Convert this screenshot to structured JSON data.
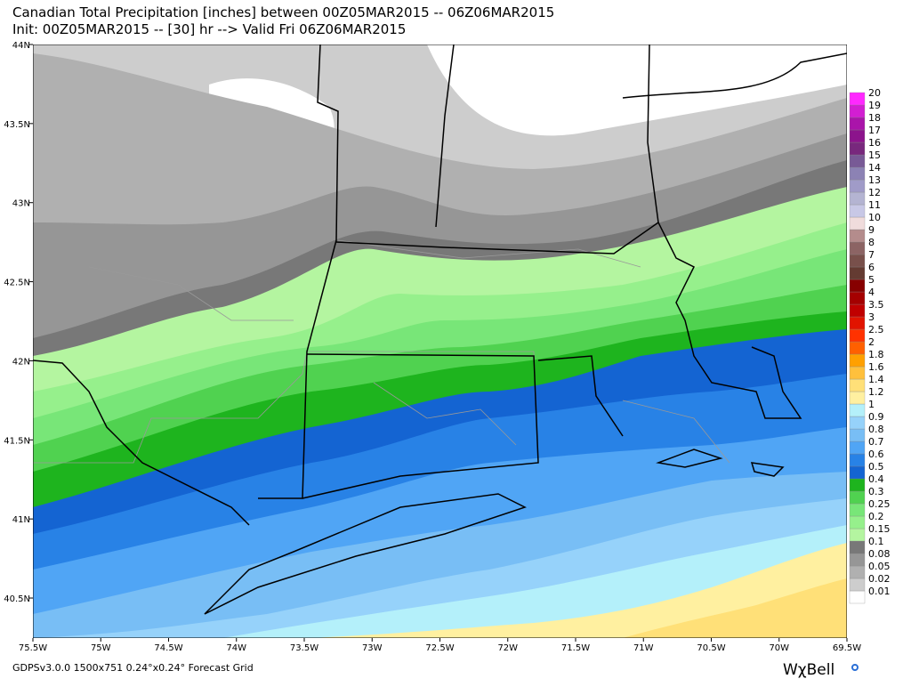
{
  "header": {
    "line1": "Canadian Total Precipitation [inches] between 00Z05MAR2015 -- 06Z06MAR2015",
    "line2": "Init: 00Z05MAR2015 -- [30] hr --> Valid Fri 06Z06MAR2015"
  },
  "lon_labels": [
    "75.5W",
    "75W",
    "74.5W",
    "74W",
    "73.5W",
    "73W",
    "72.5W",
    "72W",
    "71.5W",
    "71W",
    "70.5W",
    "70W",
    "69.5W"
  ],
  "lat_labels": [
    "44N",
    "43.5N",
    "43N",
    "42.5N",
    "42N",
    "41.5N",
    "41N",
    "40.5N"
  ],
  "colorbar": [
    {
      "label": "0.01",
      "color": "#ffffff"
    },
    {
      "label": "0.02",
      "color": "#cdcdcd"
    },
    {
      "label": "0.05",
      "color": "#b0b0b0"
    },
    {
      "label": "0.08",
      "color": "#969696"
    },
    {
      "label": "0.1",
      "color": "#787878"
    },
    {
      "label": "0.15",
      "color": "#b4f5a0"
    },
    {
      "label": "0.2",
      "color": "#96f08c"
    },
    {
      "label": "0.25",
      "color": "#78e678"
    },
    {
      "label": "0.3",
      "color": "#50d250"
    },
    {
      "label": "0.4",
      "color": "#1eb41e"
    },
    {
      "label": "0.5",
      "color": "#1464d2"
    },
    {
      "label": "0.6",
      "color": "#2882e6"
    },
    {
      "label": "0.7",
      "color": "#50a5f5"
    },
    {
      "label": "0.8",
      "color": "#78bef5"
    },
    {
      "label": "0.9",
      "color": "#96d2fa"
    },
    {
      "label": "1",
      "color": "#b4f0fa"
    },
    {
      "label": "1.2",
      "color": "#fff0a0"
    },
    {
      "label": "1.4",
      "color": "#ffe078"
    },
    {
      "label": "1.6",
      "color": "#ffc03c"
    },
    {
      "label": "1.8",
      "color": "#ffa000"
    },
    {
      "label": "2",
      "color": "#ff6000"
    },
    {
      "label": "2.5",
      "color": "#ff3200"
    },
    {
      "label": "3",
      "color": "#e11400"
    },
    {
      "label": "3.5",
      "color": "#c00000"
    },
    {
      "label": "4",
      "color": "#a50000"
    },
    {
      "label": "5",
      "color": "#870000"
    },
    {
      "label": "6",
      "color": "#643b32"
    },
    {
      "label": "7",
      "color": "#78504b"
    },
    {
      "label": "8",
      "color": "#8c6464"
    },
    {
      "label": "9",
      "color": "#b48c8c"
    },
    {
      "label": "10",
      "color": "#f0dcdc"
    },
    {
      "label": "11",
      "color": "#c8c8e6"
    },
    {
      "label": "12",
      "color": "#b4b4d2"
    },
    {
      "label": "13",
      "color": "#a09bc8"
    },
    {
      "label": "14",
      "color": "#8c82b4"
    },
    {
      "label": "15",
      "color": "#785a96"
    },
    {
      "label": "16",
      "color": "#78287d"
    },
    {
      "label": "17",
      "color": "#8c148c"
    },
    {
      "label": "18",
      "color": "#aa14aa"
    },
    {
      "label": "19",
      "color": "#d21ed2"
    },
    {
      "label": "20",
      "color": "#ff28ff"
    }
  ],
  "footer": "GDPSv3.0.0 1500x751 0.24°x0.24° Forecast Grid",
  "logo": "WχBell"
}
